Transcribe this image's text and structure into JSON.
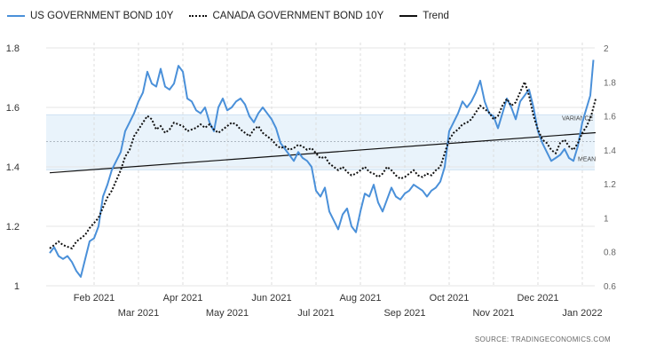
{
  "legend": {
    "us": "US GOVERNMENT BOND 10Y",
    "canada": "CANADA GOVERNMENT BOND 10Y",
    "trend": "Trend"
  },
  "source": "SOURCE:  TRADINGECONOMICS.COM",
  "colors": {
    "us": "#4a90d9",
    "canada": "#111111",
    "trend": "#111111",
    "band": "#e9f3fb"
  },
  "chart_data": {
    "type": "line",
    "x_labels_row1": [
      "Feb 2021",
      "Apr 2021",
      "Jun 2021",
      "Aug 2021",
      "Oct 2021",
      "Dec 2021"
    ],
    "x_labels_row2": [
      "Mar 2021",
      "May 2021",
      "Jul 2021",
      "Sep 2021",
      "Nov 2021",
      "Jan 2022"
    ],
    "x_range": [
      0,
      12.2
    ],
    "left_axis": {
      "ticks": [
        "1",
        "1.2",
        "1.4",
        "1.6",
        "1.8"
      ],
      "range": [
        1.0,
        1.8
      ]
    },
    "right_axis": {
      "ticks": [
        "0.6",
        "0.8",
        "1",
        "1.2",
        "1.4",
        "1.6",
        "1.8",
        "2"
      ],
      "range": [
        0.6,
        2.0
      ]
    },
    "band_labels": {
      "variance": "VARIANCE",
      "mean": "MEAN"
    },
    "band": {
      "mean": 1.485,
      "low": 1.39,
      "high": 1.575
    },
    "series": [
      {
        "name": "US GOVERNMENT BOND 10Y",
        "axis": "left",
        "points": [
          [
            0.0,
            1.11
          ],
          [
            0.1,
            1.13
          ],
          [
            0.2,
            1.1
          ],
          [
            0.3,
            1.09
          ],
          [
            0.4,
            1.1
          ],
          [
            0.5,
            1.08
          ],
          [
            0.6,
            1.05
          ],
          [
            0.7,
            1.03
          ],
          [
            0.8,
            1.09
          ],
          [
            0.9,
            1.15
          ],
          [
            1.0,
            1.16
          ],
          [
            1.1,
            1.2
          ],
          [
            1.2,
            1.3
          ],
          [
            1.3,
            1.34
          ],
          [
            1.4,
            1.39
          ],
          [
            1.5,
            1.42
          ],
          [
            1.6,
            1.45
          ],
          [
            1.7,
            1.52
          ],
          [
            1.8,
            1.55
          ],
          [
            1.9,
            1.58
          ],
          [
            2.0,
            1.62
          ],
          [
            2.1,
            1.65
          ],
          [
            2.2,
            1.72
          ],
          [
            2.3,
            1.68
          ],
          [
            2.4,
            1.67
          ],
          [
            2.5,
            1.73
          ],
          [
            2.6,
            1.67
          ],
          [
            2.7,
            1.66
          ],
          [
            2.8,
            1.68
          ],
          [
            2.9,
            1.74
          ],
          [
            3.0,
            1.72
          ],
          [
            3.1,
            1.63
          ],
          [
            3.2,
            1.62
          ],
          [
            3.3,
            1.59
          ],
          [
            3.4,
            1.58
          ],
          [
            3.5,
            1.6
          ],
          [
            3.6,
            1.55
          ],
          [
            3.7,
            1.52
          ],
          [
            3.8,
            1.6
          ],
          [
            3.9,
            1.63
          ],
          [
            4.0,
            1.59
          ],
          [
            4.1,
            1.6
          ],
          [
            4.2,
            1.62
          ],
          [
            4.3,
            1.63
          ],
          [
            4.4,
            1.61
          ],
          [
            4.5,
            1.57
          ],
          [
            4.6,
            1.55
          ],
          [
            4.7,
            1.58
          ],
          [
            4.8,
            1.6
          ],
          [
            4.9,
            1.58
          ],
          [
            5.0,
            1.56
          ],
          [
            5.1,
            1.53
          ],
          [
            5.2,
            1.48
          ],
          [
            5.3,
            1.46
          ],
          [
            5.4,
            1.44
          ],
          [
            5.5,
            1.42
          ],
          [
            5.6,
            1.45
          ],
          [
            5.7,
            1.43
          ],
          [
            5.8,
            1.42
          ],
          [
            5.9,
            1.4
          ],
          [
            6.0,
            1.32
          ],
          [
            6.1,
            1.3
          ],
          [
            6.2,
            1.33
          ],
          [
            6.3,
            1.25
          ],
          [
            6.4,
            1.22
          ],
          [
            6.5,
            1.19
          ],
          [
            6.6,
            1.24
          ],
          [
            6.7,
            1.26
          ],
          [
            6.8,
            1.2
          ],
          [
            6.9,
            1.18
          ],
          [
            7.0,
            1.25
          ],
          [
            7.1,
            1.31
          ],
          [
            7.2,
            1.3
          ],
          [
            7.3,
            1.34
          ],
          [
            7.4,
            1.28
          ],
          [
            7.5,
            1.25
          ],
          [
            7.6,
            1.29
          ],
          [
            7.7,
            1.33
          ],
          [
            7.8,
            1.3
          ],
          [
            7.9,
            1.29
          ],
          [
            8.0,
            1.31
          ],
          [
            8.1,
            1.32
          ],
          [
            8.2,
            1.34
          ],
          [
            8.3,
            1.33
          ],
          [
            8.4,
            1.32
          ],
          [
            8.5,
            1.3
          ],
          [
            8.6,
            1.32
          ],
          [
            8.7,
            1.33
          ],
          [
            8.8,
            1.35
          ],
          [
            8.9,
            1.4
          ],
          [
            9.0,
            1.52
          ],
          [
            9.1,
            1.55
          ],
          [
            9.2,
            1.58
          ],
          [
            9.3,
            1.62
          ],
          [
            9.4,
            1.6
          ],
          [
            9.5,
            1.62
          ],
          [
            9.6,
            1.65
          ],
          [
            9.7,
            1.69
          ],
          [
            9.8,
            1.62
          ],
          [
            9.9,
            1.58
          ],
          [
            10.0,
            1.57
          ],
          [
            10.1,
            1.53
          ],
          [
            10.2,
            1.58
          ],
          [
            10.3,
            1.63
          ],
          [
            10.4,
            1.6
          ],
          [
            10.5,
            1.56
          ],
          [
            10.6,
            1.62
          ],
          [
            10.7,
            1.64
          ],
          [
            10.8,
            1.66
          ],
          [
            10.9,
            1.6
          ],
          [
            11.0,
            1.52
          ],
          [
            11.1,
            1.48
          ],
          [
            11.2,
            1.45
          ],
          [
            11.3,
            1.42
          ],
          [
            11.4,
            1.43
          ],
          [
            11.5,
            1.44
          ],
          [
            11.6,
            1.46
          ],
          [
            11.7,
            1.43
          ],
          [
            11.8,
            1.42
          ],
          [
            11.9,
            1.47
          ],
          [
            12.0,
            1.55
          ],
          [
            12.1,
            1.6
          ],
          [
            12.18,
            1.64
          ],
          [
            12.25,
            1.76
          ]
        ]
      },
      {
        "name": "CANADA GOVERNMENT BOND 10Y",
        "axis": "right",
        "points": [
          [
            0.0,
            0.82
          ],
          [
            0.1,
            0.84
          ],
          [
            0.2,
            0.86
          ],
          [
            0.3,
            0.84
          ],
          [
            0.4,
            0.83
          ],
          [
            0.5,
            0.82
          ],
          [
            0.6,
            0.86
          ],
          [
            0.7,
            0.88
          ],
          [
            0.8,
            0.9
          ],
          [
            0.9,
            0.94
          ],
          [
            1.0,
            0.97
          ],
          [
            1.1,
            1.0
          ],
          [
            1.2,
            1.06
          ],
          [
            1.3,
            1.12
          ],
          [
            1.4,
            1.16
          ],
          [
            1.5,
            1.22
          ],
          [
            1.6,
            1.28
          ],
          [
            1.7,
            1.36
          ],
          [
            1.8,
            1.4
          ],
          [
            1.9,
            1.48
          ],
          [
            2.0,
            1.52
          ],
          [
            2.1,
            1.56
          ],
          [
            2.2,
            1.6
          ],
          [
            2.3,
            1.58
          ],
          [
            2.4,
            1.52
          ],
          [
            2.5,
            1.54
          ],
          [
            2.6,
            1.5
          ],
          [
            2.7,
            1.52
          ],
          [
            2.8,
            1.56
          ],
          [
            2.9,
            1.55
          ],
          [
            3.0,
            1.54
          ],
          [
            3.1,
            1.51
          ],
          [
            3.2,
            1.52
          ],
          [
            3.3,
            1.53
          ],
          [
            3.4,
            1.55
          ],
          [
            3.5,
            1.53
          ],
          [
            3.6,
            1.55
          ],
          [
            3.7,
            1.52
          ],
          [
            3.8,
            1.5
          ],
          [
            3.9,
            1.52
          ],
          [
            4.0,
            1.54
          ],
          [
            4.1,
            1.56
          ],
          [
            4.2,
            1.55
          ],
          [
            4.3,
            1.52
          ],
          [
            4.4,
            1.5
          ],
          [
            4.5,
            1.48
          ],
          [
            4.6,
            1.52
          ],
          [
            4.7,
            1.54
          ],
          [
            4.8,
            1.5
          ],
          [
            4.9,
            1.48
          ],
          [
            5.0,
            1.46
          ],
          [
            5.1,
            1.43
          ],
          [
            5.2,
            1.41
          ],
          [
            5.3,
            1.42
          ],
          [
            5.4,
            1.4
          ],
          [
            5.5,
            1.41
          ],
          [
            5.6,
            1.43
          ],
          [
            5.7,
            1.42
          ],
          [
            5.8,
            1.4
          ],
          [
            5.9,
            1.41
          ],
          [
            6.0,
            1.38
          ],
          [
            6.1,
            1.35
          ],
          [
            6.2,
            1.36
          ],
          [
            6.3,
            1.32
          ],
          [
            6.4,
            1.3
          ],
          [
            6.5,
            1.28
          ],
          [
            6.6,
            1.3
          ],
          [
            6.7,
            1.27
          ],
          [
            6.8,
            1.25
          ],
          [
            6.9,
            1.26
          ],
          [
            7.0,
            1.28
          ],
          [
            7.1,
            1.3
          ],
          [
            7.2,
            1.27
          ],
          [
            7.3,
            1.26
          ],
          [
            7.4,
            1.24
          ],
          [
            7.5,
            1.26
          ],
          [
            7.6,
            1.3
          ],
          [
            7.7,
            1.28
          ],
          [
            7.8,
            1.25
          ],
          [
            7.9,
            1.23
          ],
          [
            8.0,
            1.24
          ],
          [
            8.1,
            1.26
          ],
          [
            8.2,
            1.28
          ],
          [
            8.3,
            1.25
          ],
          [
            8.4,
            1.24
          ],
          [
            8.5,
            1.26
          ],
          [
            8.6,
            1.25
          ],
          [
            8.7,
            1.28
          ],
          [
            8.8,
            1.3
          ],
          [
            8.9,
            1.38
          ],
          [
            9.0,
            1.46
          ],
          [
            9.1,
            1.5
          ],
          [
            9.2,
            1.52
          ],
          [
            9.3,
            1.55
          ],
          [
            9.4,
            1.56
          ],
          [
            9.5,
            1.58
          ],
          [
            9.6,
            1.62
          ],
          [
            9.7,
            1.66
          ],
          [
            9.8,
            1.64
          ],
          [
            9.9,
            1.62
          ],
          [
            10.0,
            1.58
          ],
          [
            10.1,
            1.6
          ],
          [
            10.2,
            1.66
          ],
          [
            10.3,
            1.7
          ],
          [
            10.4,
            1.66
          ],
          [
            10.5,
            1.68
          ],
          [
            10.6,
            1.74
          ],
          [
            10.7,
            1.8
          ],
          [
            10.8,
            1.72
          ],
          [
            10.9,
            1.6
          ],
          [
            11.0,
            1.52
          ],
          [
            11.1,
            1.46
          ],
          [
            11.2,
            1.44
          ],
          [
            11.3,
            1.4
          ],
          [
            11.4,
            1.38
          ],
          [
            11.5,
            1.44
          ],
          [
            11.6,
            1.46
          ],
          [
            11.7,
            1.42
          ],
          [
            11.8,
            1.4
          ],
          [
            11.9,
            1.44
          ],
          [
            12.0,
            1.5
          ],
          [
            12.1,
            1.54
          ],
          [
            12.2,
            1.6
          ],
          [
            12.3,
            1.7
          ]
        ]
      }
    ],
    "trend": {
      "axis": "left",
      "from": [
        0.0,
        1.38
      ],
      "to": [
        12.3,
        1.515
      ]
    }
  }
}
